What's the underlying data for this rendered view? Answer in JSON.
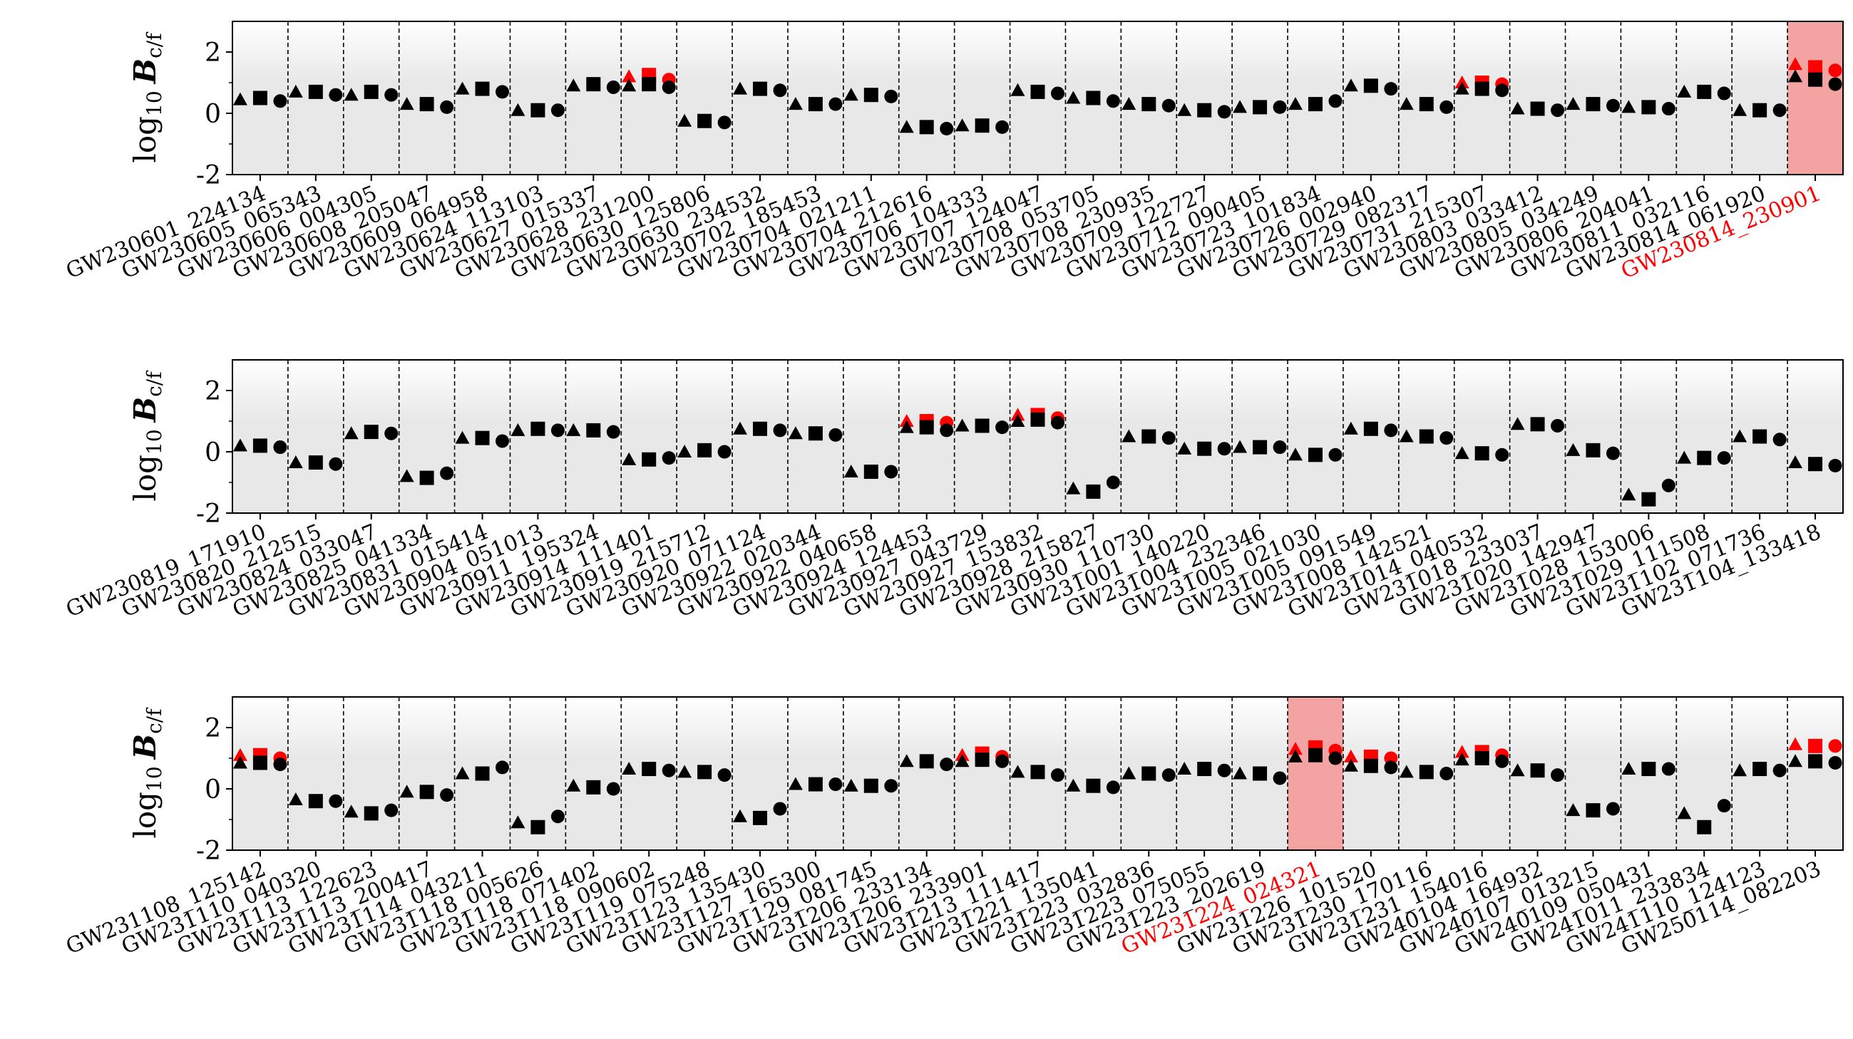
{
  "chart_data": {
    "type": "scatter",
    "ylabel": "log10 B_c/f",
    "ylabel_base": "log",
    "ylabel_sub": "10",
    "ylabel_symbol": "B",
    "ylabel_symbol_sub": "c/f",
    "ylim": [
      -2,
      3
    ],
    "yticks": [
      "2",
      "0",
      "-2"
    ],
    "ytick_values": [
      2,
      0,
      -2
    ],
    "threshold": 1,
    "series": [
      "triangle",
      "square",
      "circle"
    ],
    "colors": {
      "below": "#000000",
      "above": "#ff0000",
      "band": "#e8e8e8",
      "highlight": "#f4a3a3"
    },
    "panels": [
      {
        "events": [
          {
            "label": "GW230601_224134",
            "values": [
              0.45,
              0.5,
              0.4
            ]
          },
          {
            "label": "GW230605_065343",
            "values": [
              0.7,
              0.7,
              0.6
            ]
          },
          {
            "label": "GW230606_004305",
            "values": [
              0.6,
              0.7,
              0.6
            ]
          },
          {
            "label": "GW230608_205047",
            "values": [
              0.3,
              0.3,
              0.2
            ]
          },
          {
            "label": "GW230609_064958",
            "values": [
              0.8,
              0.8,
              0.7
            ]
          },
          {
            "label": "GW230624_113103",
            "values": [
              0.1,
              0.1,
              0.1
            ]
          },
          {
            "label": "GW230627_015337",
            "values": [
              0.9,
              0.95,
              0.85
            ]
          },
          {
            "label": "GW230628_231200",
            "values": [
              1.2,
              1.25,
              1.1
            ],
            "lower": [
              0.9,
              0.95,
              0.85
            ]
          },
          {
            "label": "GW230630_125806",
            "values": [
              -0.25,
              -0.25,
              -0.3
            ]
          },
          {
            "label": "GW230630_234532",
            "values": [
              0.8,
              0.8,
              0.75
            ]
          },
          {
            "label": "GW230702_185453",
            "values": [
              0.3,
              0.3,
              0.3
            ]
          },
          {
            "label": "GW230704_021211",
            "values": [
              0.6,
              0.6,
              0.55
            ]
          },
          {
            "label": "GW230704_212616",
            "values": [
              -0.45,
              -0.45,
              -0.5
            ]
          },
          {
            "label": "GW230706_104333",
            "values": [
              -0.4,
              -0.4,
              -0.45
            ]
          },
          {
            "label": "GW230707_124047",
            "values": [
              0.75,
              0.7,
              0.65
            ]
          },
          {
            "label": "GW230708_053705",
            "values": [
              0.5,
              0.5,
              0.4
            ]
          },
          {
            "label": "GW230708_230935",
            "values": [
              0.3,
              0.3,
              0.25
            ]
          },
          {
            "label": "GW230709_122727",
            "values": [
              0.1,
              0.1,
              0.05
            ]
          },
          {
            "label": "GW230712_090405",
            "values": [
              0.2,
              0.2,
              0.2
            ]
          },
          {
            "label": "GW230723_101834",
            "values": [
              0.3,
              0.3,
              0.4
            ]
          },
          {
            "label": "GW230726_002940",
            "values": [
              0.9,
              0.9,
              0.8
            ]
          },
          {
            "label": "GW230729_082317",
            "values": [
              0.3,
              0.3,
              0.2
            ]
          },
          {
            "label": "GW230731_215307",
            "values": [
              1.0,
              1.0,
              0.95
            ],
            "lower": [
              0.8,
              0.8,
              0.75
            ]
          },
          {
            "label": "GW230803_033412",
            "values": [
              0.15,
              0.15,
              0.1
            ]
          },
          {
            "label": "GW230805_034249",
            "values": [
              0.3,
              0.3,
              0.25
            ]
          },
          {
            "label": "GW230806_204041",
            "values": [
              0.2,
              0.2,
              0.15
            ]
          },
          {
            "label": "GW230811_032116",
            "values": [
              0.7,
              0.7,
              0.65
            ]
          },
          {
            "label": "GW230814_061920",
            "values": [
              0.1,
              0.1,
              0.1
            ]
          },
          {
            "label": "GW230814_230901",
            "values": [
              1.6,
              1.5,
              1.4
            ],
            "lower": [
              1.2,
              1.1,
              0.95
            ],
            "highlight": true
          }
        ]
      },
      {
        "events": [
          {
            "label": "GW230819_171910",
            "values": [
              0.2,
              0.2,
              0.15
            ]
          },
          {
            "label": "GW230820_212515",
            "values": [
              -0.35,
              -0.35,
              -0.4
            ]
          },
          {
            "label": "GW230824_033047",
            "values": [
              0.6,
              0.65,
              0.6
            ]
          },
          {
            "label": "GW230825_041334",
            "values": [
              -0.8,
              -0.85,
              -0.7
            ]
          },
          {
            "label": "GW230831_015414",
            "values": [
              0.45,
              0.45,
              0.35
            ]
          },
          {
            "label": "GW230904_051013",
            "values": [
              0.7,
              0.75,
              0.7
            ]
          },
          {
            "label": "GW230911_195324",
            "values": [
              0.7,
              0.7,
              0.65
            ]
          },
          {
            "label": "GW230914_111401",
            "values": [
              -0.25,
              -0.25,
              -0.2
            ]
          },
          {
            "label": "GW230919_215712",
            "values": [
              0.0,
              0.05,
              0.0
            ]
          },
          {
            "label": "GW230920_071124",
            "values": [
              0.75,
              0.75,
              0.7
            ]
          },
          {
            "label": "GW230922_020344",
            "values": [
              0.6,
              0.6,
              0.55
            ]
          },
          {
            "label": "GW230922_040658",
            "values": [
              -0.65,
              -0.65,
              -0.65
            ]
          },
          {
            "label": "GW230924_124453",
            "values": [
              1.0,
              1.0,
              0.95
            ],
            "lower": [
              0.8,
              0.8,
              0.7
            ]
          },
          {
            "label": "GW230927_043729",
            "values": [
              0.85,
              0.85,
              0.8
            ]
          },
          {
            "label": "GW230927_153832",
            "values": [
              1.2,
              1.2,
              1.1
            ],
            "lower": [
              1.0,
              1.05,
              0.95
            ]
          },
          {
            "label": "GW230928_215827",
            "values": [
              -1.2,
              -1.3,
              -1.0
            ]
          },
          {
            "label": "GW230930_110730",
            "values": [
              0.5,
              0.5,
              0.45
            ]
          },
          {
            "label": "GW231001_140220",
            "values": [
              0.1,
              0.1,
              0.1
            ]
          },
          {
            "label": "GW231004_232346",
            "values": [
              0.15,
              0.15,
              0.15
            ]
          },
          {
            "label": "GW231005_021030",
            "values": [
              -0.1,
              -0.1,
              -0.1
            ]
          },
          {
            "label": "GW231005_091549",
            "values": [
              0.75,
              0.75,
              0.7
            ]
          },
          {
            "label": "GW231008_142521",
            "values": [
              0.5,
              0.5,
              0.45
            ]
          },
          {
            "label": "GW231014_040532",
            "values": [
              -0.05,
              -0.05,
              -0.1
            ]
          },
          {
            "label": "GW231018_233037",
            "values": [
              0.9,
              0.9,
              0.85
            ]
          },
          {
            "label": "GW231020_142947",
            "values": [
              0.05,
              0.05,
              -0.05
            ]
          },
          {
            "label": "GW231028_153006",
            "values": [
              -1.4,
              -1.55,
              -1.1
            ]
          },
          {
            "label": "GW231029_111508",
            "values": [
              -0.2,
              -0.2,
              -0.2
            ]
          },
          {
            "label": "GW231102_071736",
            "values": [
              0.5,
              0.5,
              0.4
            ]
          },
          {
            "label": "GW231104_133418",
            "values": [
              -0.35,
              -0.4,
              -0.45
            ]
          }
        ]
      },
      {
        "events": [
          {
            "label": "GW231108_125142",
            "values": [
              1.1,
              1.1,
              1.0
            ],
            "lower": [
              0.85,
              0.85,
              0.8
            ]
          },
          {
            "label": "GW231110_040320",
            "values": [
              -0.35,
              -0.4,
              -0.4
            ]
          },
          {
            "label": "GW231113_122623",
            "values": [
              -0.75,
              -0.8,
              -0.7
            ]
          },
          {
            "label": "GW231113_200417",
            "values": [
              -0.1,
              -0.1,
              -0.2
            ]
          },
          {
            "label": "GW231114_043211",
            "values": [
              0.5,
              0.5,
              0.7
            ]
          },
          {
            "label": "GW231118_005626",
            "values": [
              -1.1,
              -1.25,
              -0.9
            ]
          },
          {
            "label": "GW231118_071402",
            "values": [
              0.1,
              0.05,
              0.0
            ]
          },
          {
            "label": "GW231118_090602",
            "values": [
              0.65,
              0.65,
              0.6
            ]
          },
          {
            "label": "GW231119_075248",
            "values": [
              0.55,
              0.55,
              0.45
            ]
          },
          {
            "label": "GW231123_135430",
            "values": [
              -0.9,
              -0.95,
              -0.65
            ]
          },
          {
            "label": "GW231127_165300",
            "values": [
              0.15,
              0.15,
              0.15
            ]
          },
          {
            "label": "GW231129_081745",
            "values": [
              0.1,
              0.1,
              0.1
            ]
          },
          {
            "label": "GW231206_233134",
            "values": [
              0.9,
              0.9,
              0.8
            ]
          },
          {
            "label": "GW231206_233901",
            "values": [
              1.1,
              1.15,
              1.05
            ],
            "lower": [
              0.9,
              0.95,
              0.9
            ]
          },
          {
            "label": "GW231213_111417",
            "values": [
              0.55,
              0.55,
              0.45
            ]
          },
          {
            "label": "GW231221_135041",
            "values": [
              0.1,
              0.1,
              0.05
            ]
          },
          {
            "label": "GW231223_032836",
            "values": [
              0.5,
              0.5,
              0.45
            ]
          },
          {
            "label": "GW231223_075055",
            "values": [
              0.65,
              0.65,
              0.6
            ]
          },
          {
            "label": "GW231223_202619",
            "values": [
              0.5,
              0.5,
              0.35
            ]
          },
          {
            "label": "GW231224_024321",
            "values": [
              1.3,
              1.35,
              1.25
            ],
            "lower": [
              1.05,
              1.1,
              1.0
            ],
            "highlight": true
          },
          {
            "label": "GW231226_101520",
            "values": [
              1.05,
              1.05,
              1.0
            ],
            "lower": [
              0.75,
              0.75,
              0.7
            ]
          },
          {
            "label": "GW231230_170116",
            "values": [
              0.55,
              0.55,
              0.5
            ]
          },
          {
            "label": "GW231231_154016",
            "values": [
              1.2,
              1.2,
              1.1
            ],
            "lower": [
              0.95,
              1.0,
              0.9
            ]
          },
          {
            "label": "GW240104_164932",
            "values": [
              0.6,
              0.6,
              0.45
            ]
          },
          {
            "label": "GW240107_013215",
            "values": [
              -0.7,
              -0.7,
              -0.65
            ]
          },
          {
            "label": "GW240109_050431",
            "values": [
              0.65,
              0.65,
              0.65
            ]
          },
          {
            "label": "GW241011_233834",
            "values": [
              -0.8,
              -1.25,
              -0.55
            ]
          },
          {
            "label": "GW241110_124123",
            "values": [
              0.6,
              0.65,
              0.6
            ]
          },
          {
            "label": "GW250114_082203",
            "values": [
              1.45,
              1.4,
              1.4
            ],
            "lower": [
              0.9,
              0.9,
              0.85
            ]
          }
        ]
      }
    ]
  }
}
